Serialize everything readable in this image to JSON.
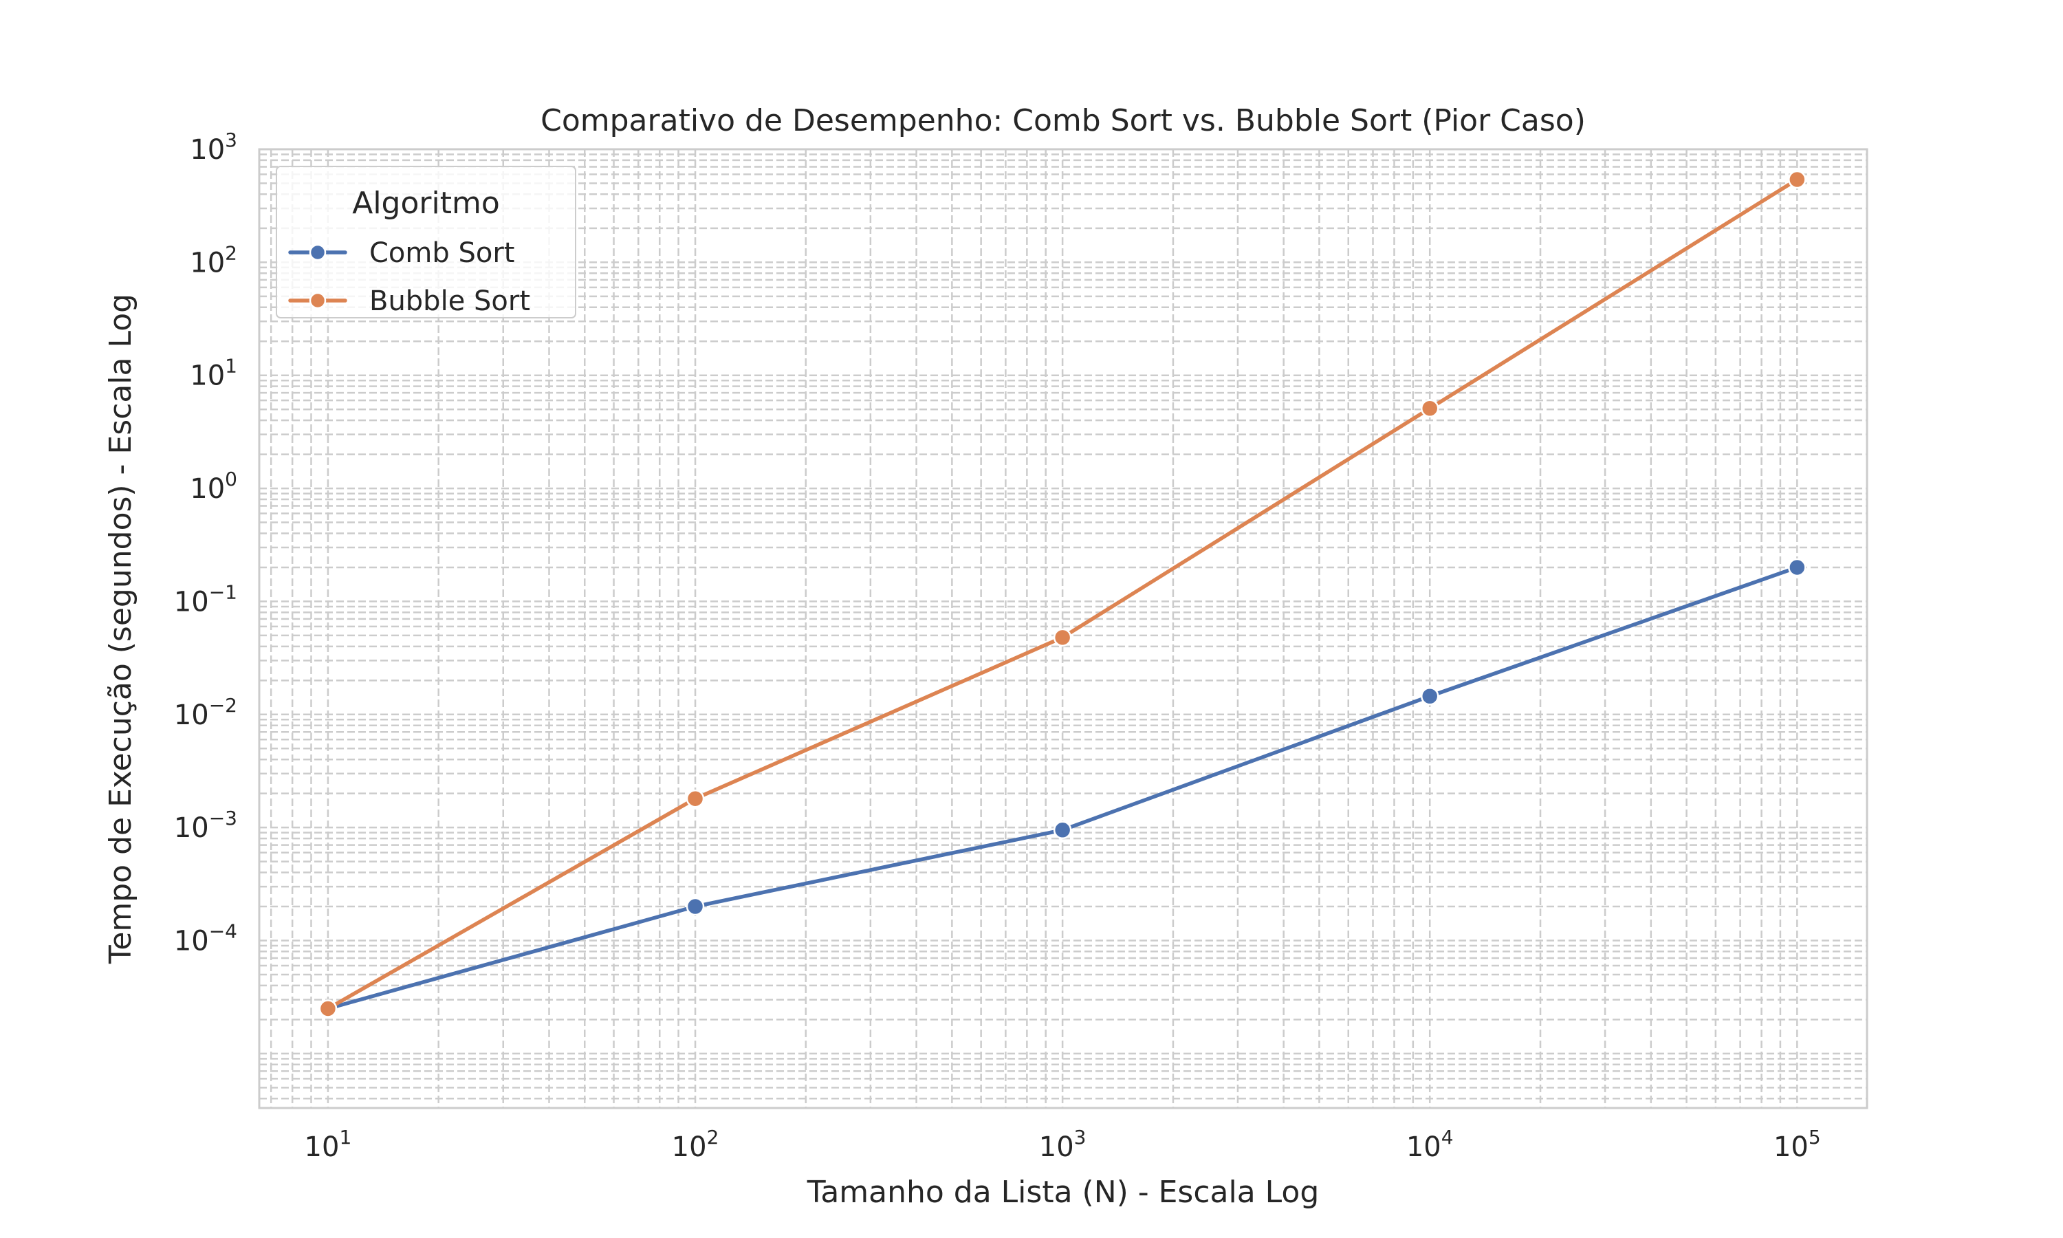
{
  "chart_data": {
    "type": "line",
    "title": "Comparativo de Desempenho: Comb Sort vs. Bubble Sort (Pior Caso)",
    "xlabel": "Tamanho da Lista (N) - Escala Log",
    "ylabel": "Tempo de Execução (segundos) - Escala Log",
    "x_scale": "log",
    "y_scale": "log",
    "xlim": [
      6.5,
      155000
    ],
    "ylim": [
      3.3e-06,
      1000
    ],
    "x_ticks": [
      10,
      100,
      1000,
      10000,
      100000
    ],
    "x_tick_labels": [
      {
        "base": "10",
        "exp": "1"
      },
      {
        "base": "10",
        "exp": "2"
      },
      {
        "base": "10",
        "exp": "3"
      },
      {
        "base": "10",
        "exp": "4"
      },
      {
        "base": "10",
        "exp": "5"
      }
    ],
    "y_ticks": [
      0.0001,
      0.001,
      0.01,
      0.1,
      1,
      10,
      100,
      1000
    ],
    "y_tick_labels": [
      {
        "base": "10",
        "exp": "−4"
      },
      {
        "base": "10",
        "exp": "−3"
      },
      {
        "base": "10",
        "exp": "−2"
      },
      {
        "base": "10",
        "exp": "−1"
      },
      {
        "base": "10",
        "exp": "0"
      },
      {
        "base": "10",
        "exp": "1"
      },
      {
        "base": "10",
        "exp": "2"
      },
      {
        "base": "10",
        "exp": "3"
      }
    ],
    "grid": "major and minor, dashed",
    "legend": {
      "title": "Algoritmo",
      "placement": "top-left"
    },
    "x": [
      10,
      100,
      1000,
      10000,
      100000
    ],
    "series": [
      {
        "name": "Comb Sort",
        "color": "#4c72b0",
        "values": [
          2.5e-05,
          0.0002,
          0.00095,
          0.0145,
          0.2
        ]
      },
      {
        "name": "Bubble Sort",
        "color": "#dd8452",
        "values": [
          2.5e-05,
          0.0018,
          0.048,
          5.1,
          540
        ]
      }
    ]
  }
}
